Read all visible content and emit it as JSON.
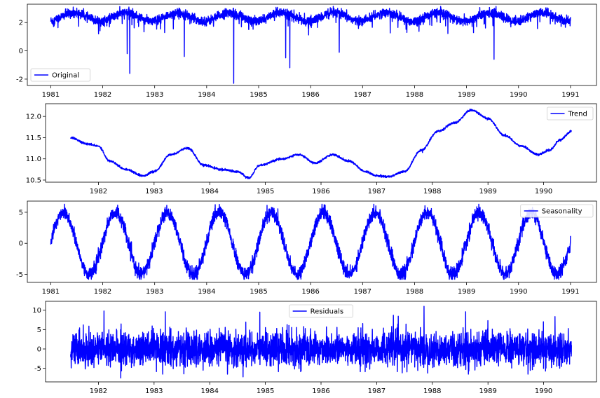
{
  "chart_data": [
    {
      "type": "line",
      "series": [
        {
          "name": "Original",
          "color": "#0000ff",
          "mean": 2.4,
          "noise": 0.35,
          "season_amp": 0.3,
          "start_year": 1981.0,
          "end_year": 1991.0,
          "spikes": [
            [
              1982.52,
              -1.6
            ],
            [
              1984.52,
              -2.3
            ],
            [
              1985.52,
              -0.5
            ],
            [
              1985.6,
              -1.2
            ],
            [
              1989.53,
              -0.6
            ],
            [
              1982.47,
              -0.2
            ],
            [
              1983.57,
              -0.4
            ],
            [
              1986.55,
              -0.1
            ]
          ]
        }
      ],
      "x_ticks": [
        "1981",
        "1982",
        "1983",
        "1984",
        "1985",
        "1986",
        "1987",
        "1988",
        "1989",
        "1990",
        "1991"
      ],
      "y_ticks": [
        2,
        0,
        -2
      ],
      "xlim": [
        1980.55,
        1991.5
      ],
      "ylim": [
        -2.45,
        3.3
      ],
      "legend": "lower-left",
      "grid": false
    },
    {
      "type": "line",
      "series": [
        {
          "name": "Trend",
          "color": "#0000ff",
          "start_year": 1981.5,
          "end_year": 1990.5,
          "knots": [
            [
              1981.5,
              11.5
            ],
            [
              1981.8,
              11.35
            ],
            [
              1982.0,
              11.3
            ],
            [
              1982.2,
              10.95
            ],
            [
              1982.5,
              10.75
            ],
            [
              1982.8,
              10.6
            ],
            [
              1983.0,
              10.7
            ],
            [
              1983.3,
              11.1
            ],
            [
              1983.6,
              11.25
            ],
            [
              1983.9,
              10.85
            ],
            [
              1984.2,
              10.75
            ],
            [
              1984.5,
              10.7
            ],
            [
              1984.7,
              10.55
            ],
            [
              1984.9,
              10.85
            ],
            [
              1985.3,
              11.0
            ],
            [
              1985.6,
              11.1
            ],
            [
              1985.9,
              10.9
            ],
            [
              1986.2,
              11.1
            ],
            [
              1986.5,
              10.95
            ],
            [
              1986.8,
              10.7
            ],
            [
              1987.0,
              10.6
            ],
            [
              1987.2,
              10.58
            ],
            [
              1987.5,
              10.7
            ],
            [
              1987.8,
              11.2
            ],
            [
              1988.1,
              11.65
            ],
            [
              1988.4,
              11.85
            ],
            [
              1988.7,
              12.15
            ],
            [
              1989.0,
              11.95
            ],
            [
              1989.3,
              11.55
            ],
            [
              1989.6,
              11.3
            ],
            [
              1989.9,
              11.1
            ],
            [
              1990.1,
              11.2
            ],
            [
              1990.3,
              11.45
            ],
            [
              1990.5,
              11.65
            ]
          ]
        }
      ],
      "x_ticks": [
        "1982",
        "1983",
        "1984",
        "1985",
        "1986",
        "1987",
        "1988",
        "1989",
        "1990"
      ],
      "y_ticks": [
        12.0,
        11.5,
        11.0,
        10.5
      ],
      "xlim": [
        1981.05,
        1990.95
      ],
      "ylim": [
        10.45,
        12.3
      ],
      "legend": "upper-right",
      "grid": false
    },
    {
      "type": "line",
      "series": [
        {
          "name": "Seasonality",
          "color": "#0000ff",
          "amplitude": 5,
          "noise": 1.0,
          "phase_year_offset": 0.03,
          "start_year": 1981.0,
          "end_year": 1991.0
        }
      ],
      "x_ticks": [
        "1981",
        "1982",
        "1983",
        "1984",
        "1985",
        "1986",
        "1987",
        "1988",
        "1989",
        "1990",
        "1991"
      ],
      "y_ticks": [
        5,
        0,
        -5
      ],
      "xlim": [
        1980.55,
        1991.5
      ],
      "ylim": [
        -6.3,
        6.8
      ],
      "legend": "upper-right",
      "grid": false
    },
    {
      "type": "line",
      "series": [
        {
          "name": "Residuals",
          "color": "#0000ff",
          "std": 2.6,
          "start_year": 1981.5,
          "end_year": 1990.5,
          "spikes": [
            [
              1982.1,
              9.8
            ],
            [
              1982.4,
              -7.5
            ],
            [
              1983.2,
              9.6
            ],
            [
              1984.6,
              -7.2
            ],
            [
              1984.9,
              9.5
            ],
            [
              1987.85,
              11.0
            ],
            [
              1987.3,
              8.7
            ],
            [
              1988.6,
              9.6
            ]
          ]
        }
      ],
      "x_ticks": [
        "1982",
        "1983",
        "1984",
        "1985",
        "1986",
        "1987",
        "1988",
        "1989",
        "1990"
      ],
      "y_ticks": [
        10,
        5,
        0,
        -5
      ],
      "xlim": [
        1981.05,
        1990.95
      ],
      "ylim": [
        -8.5,
        12.3
      ],
      "legend": "upper-center",
      "grid": false
    }
  ]
}
